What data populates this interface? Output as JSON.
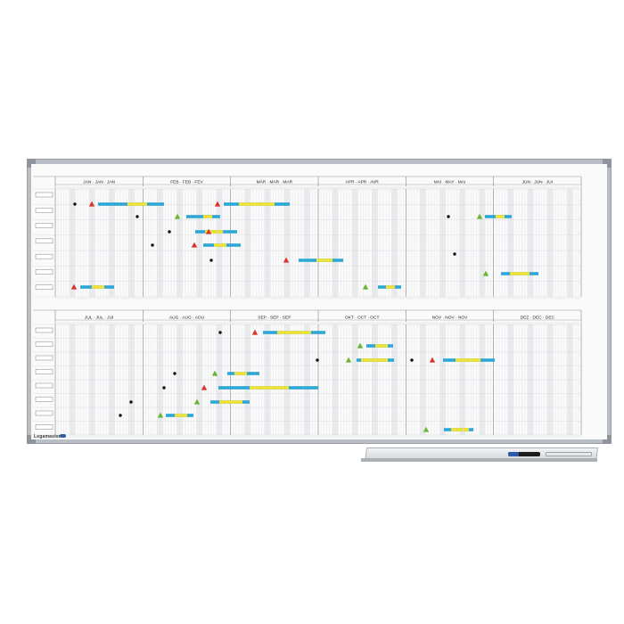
{
  "board": {
    "brand_text": "Legamaster",
    "colors": {
      "frame": "#b9bec4",
      "surface": "#fafafa",
      "grid": "#d2d6da",
      "weekend": "#e9ebee",
      "magnet_blue": "#2fa7d6",
      "magnet_yellow": "#f1e23a",
      "triangle_red": "#d9342b",
      "triangle_green": "#6bb533",
      "dot": "#111111"
    }
  },
  "halves": [
    {
      "months": [
        "JAN · JAN · JAN",
        "FEB · FEB · FEV",
        "MÄR · MAR · MAR",
        "APR · APR · AVR",
        "MAI · MAY · MAI",
        "JUN · JUN · JUI"
      ],
      "rows": 7
    },
    {
      "months": [
        "JUL · JUL · JUI",
        "AUG · AUG · AOU",
        "SEP · SEP · SEP",
        "OKT · OCT · OCT",
        "NOV · NOV · NOV",
        "DEZ · DEC · DEC"
      ],
      "rows": 8
    }
  ]
}
